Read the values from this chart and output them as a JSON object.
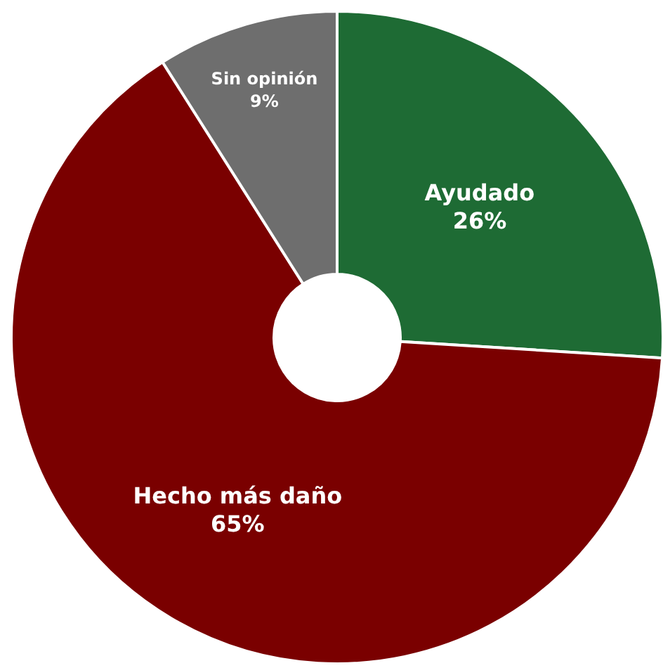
{
  "chart_data": {
    "type": "donut",
    "categories": [
      "Ayudado",
      "Hecho más daño",
      "Sin opinión"
    ],
    "values": [
      26,
      65,
      9
    ],
    "colors": [
      "#1e6b34",
      "#7a0000",
      "#6e6e6e"
    ],
    "value_labels": [
      "26%",
      "65%",
      "9%"
    ],
    "legend": false
  }
}
